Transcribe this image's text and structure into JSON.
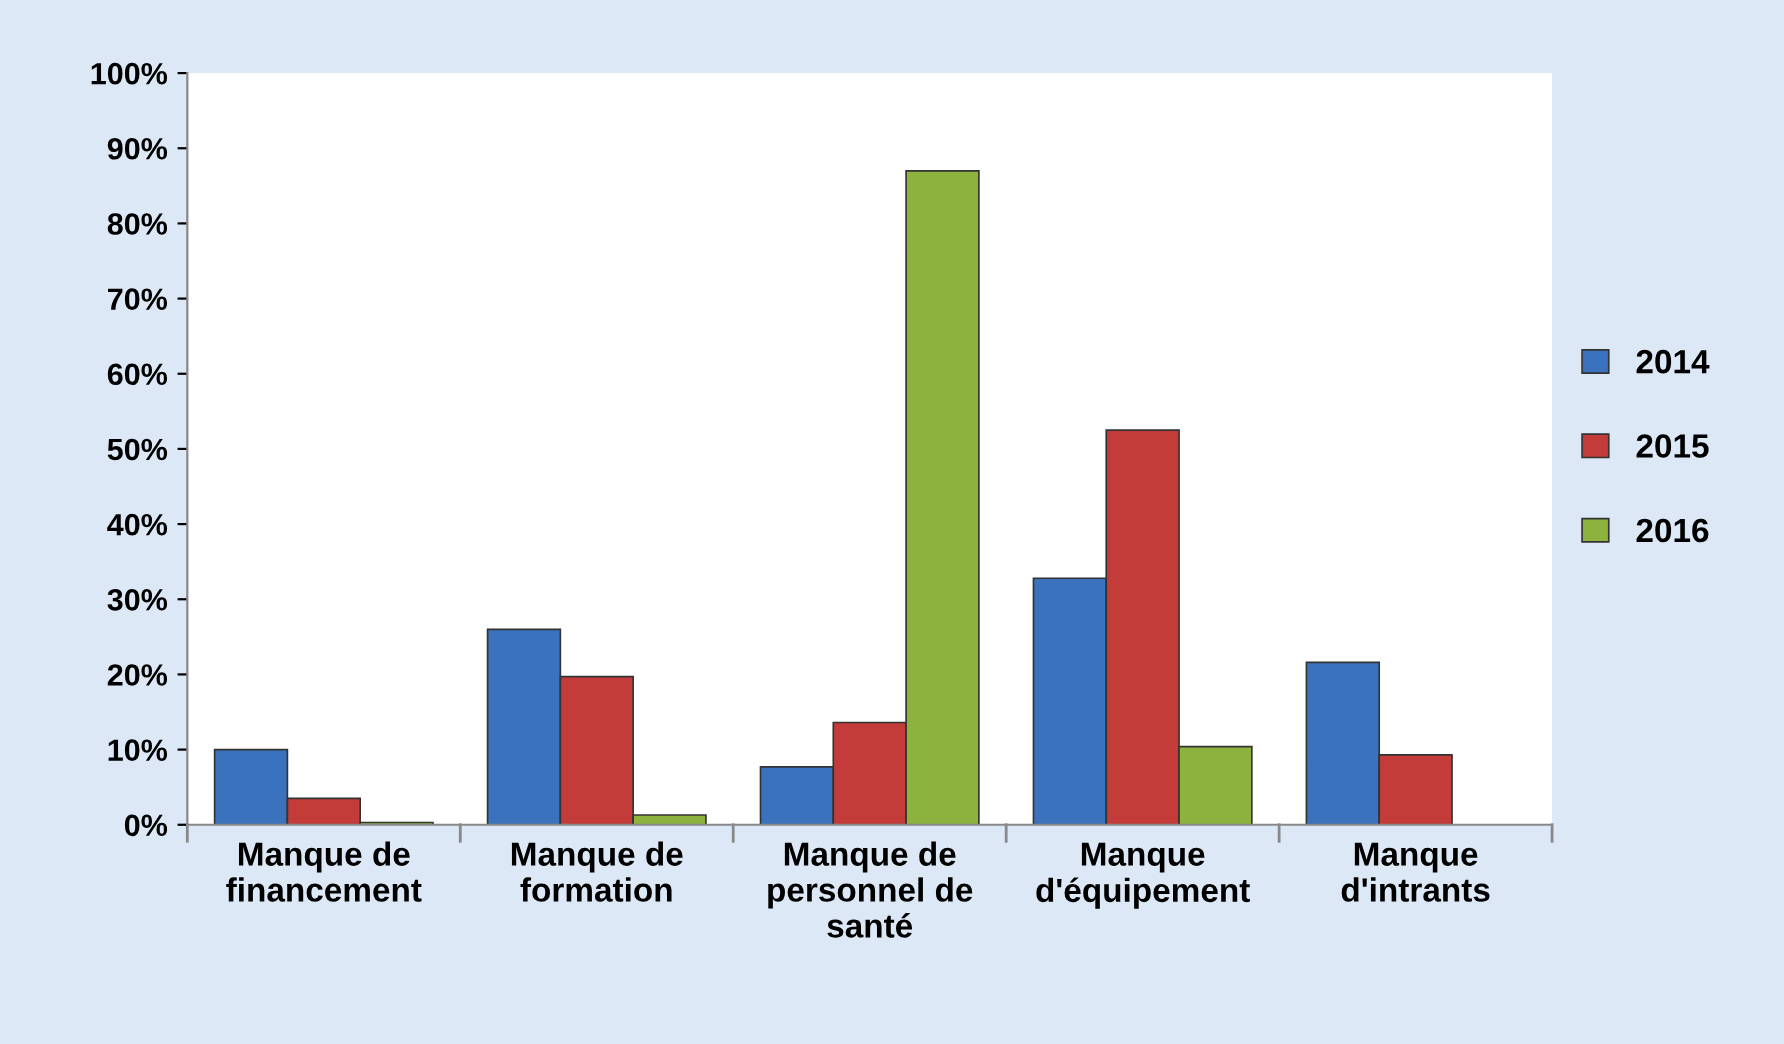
{
  "chart_data": {
    "type": "bar",
    "categories": [
      "Manque de\nfinancement",
      "Manque de\nformation",
      "Manque de\npersonnel de\nsanté",
      "Manque\nd'équipement",
      "Manque\nd'intrants"
    ],
    "series": [
      {
        "name": "2014",
        "color": "#3a72bd",
        "values": [
          10,
          26,
          7.7,
          32.8,
          21.6
        ]
      },
      {
        "name": "2015",
        "color": "#c43c3a",
        "values": [
          3.5,
          19.7,
          13.6,
          52.5,
          9.3
        ]
      },
      {
        "name": "2016",
        "color": "#8db33e",
        "values": [
          0.3,
          1.3,
          87,
          10.4,
          null
        ]
      }
    ],
    "ylim": [
      0,
      100
    ],
    "yticks": [
      {
        "value": 0,
        "label": "0%"
      },
      {
        "value": 10,
        "label": "10%"
      },
      {
        "value": 20,
        "label": "20%"
      },
      {
        "value": 30,
        "label": "30%"
      },
      {
        "value": 40,
        "label": "40%"
      },
      {
        "value": 50,
        "label": "50%"
      },
      {
        "value": 60,
        "label": "60%"
      },
      {
        "value": 70,
        "label": "70%"
      },
      {
        "value": 80,
        "label": "80%"
      },
      {
        "value": 90,
        "label": "90%"
      },
      {
        "value": 100,
        "label": "100%"
      }
    ],
    "grid": false,
    "legend": "right"
  }
}
